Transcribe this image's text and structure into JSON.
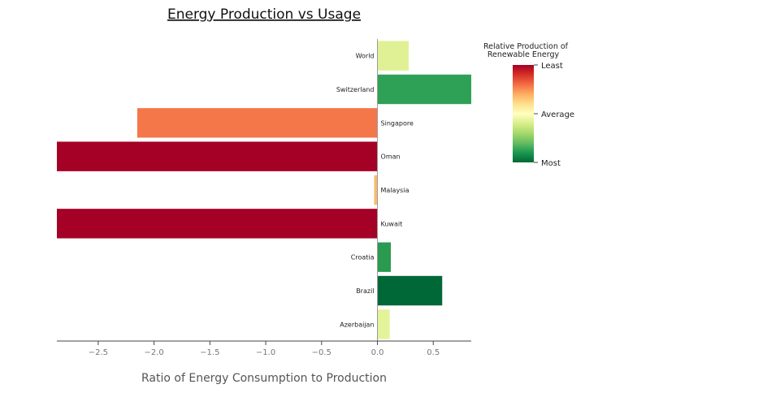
{
  "chart_data": {
    "type": "bar",
    "orientation": "horizontal",
    "title": "Energy Production vs Usage",
    "xlabel": "Ratio of Energy Consumption to Production",
    "ylabel": "",
    "xlim": [
      -2.87,
      0.84
    ],
    "xticks": [
      -2.5,
      -2,
      -1.5,
      -1,
      -0.5,
      0,
      0.5
    ],
    "xtick_labels": [
      "−2.5",
      "−2.0",
      "−1.5",
      "−1.0",
      "−0.5",
      "0.0",
      "0.5"
    ],
    "grid": false,
    "categories": [
      "World",
      "Switzerland",
      "Singapore",
      "Oman",
      "Malaysia",
      "Kuwait",
      "Croatia",
      "Brazil",
      "Azerbaijan"
    ],
    "values": [
      0.28,
      0.84,
      -2.15,
      -2.87,
      -0.03,
      -2.87,
      0.12,
      0.58,
      0.11
    ],
    "colors": [
      "#e0f195",
      "#2fa157",
      "#f4774a",
      "#a50026",
      "#f9bc6e",
      "#a50026",
      "#2a9a51",
      "#006837",
      "#e2f399"
    ],
    "colorbar": {
      "title_lines": [
        "Relative Production of",
        "Renewable Energy"
      ],
      "tick_labels": [
        "Least",
        "Average",
        "Most"
      ],
      "colors": [
        "#a50026",
        "#d73027",
        "#f46d43",
        "#fdae61",
        "#fee08b",
        "#ffffbf",
        "#d9ef8b",
        "#a6d96a",
        "#66bd63",
        "#1a9850",
        "#006837"
      ]
    }
  }
}
